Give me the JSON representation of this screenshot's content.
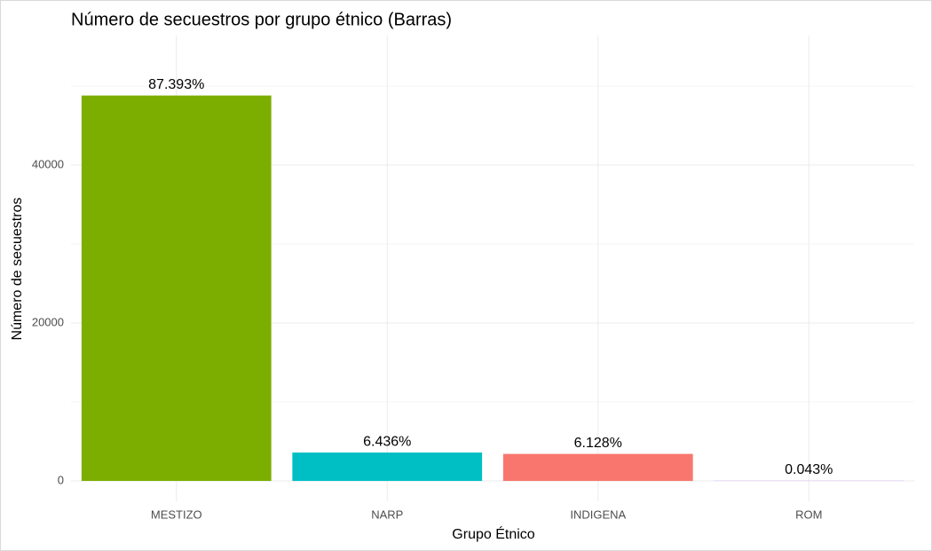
{
  "chart_data": {
    "type": "bar",
    "title": "Número de secuestros por grupo étnico (Barras)",
    "x_label": "Grupo Étnico",
    "y_label": "Número de secuestros",
    "categories": [
      "MESTIZO",
      "NARP",
      "INDIGENA",
      "ROM"
    ],
    "values": [
      48800,
      3594,
      3422,
      24
    ],
    "value_labels": [
      "87.393%",
      "6.436%",
      "6.128%",
      "0.043%"
    ],
    "colors": [
      "#7CAE00",
      "#00BFC4",
      "#F8766D",
      "#C77CFF"
    ],
    "ylim": [
      -2580,
      56400
    ],
    "yticks": [
      0,
      20000,
      40000
    ],
    "minor_yticks": [
      10000,
      30000,
      50000
    ],
    "grid": true
  }
}
